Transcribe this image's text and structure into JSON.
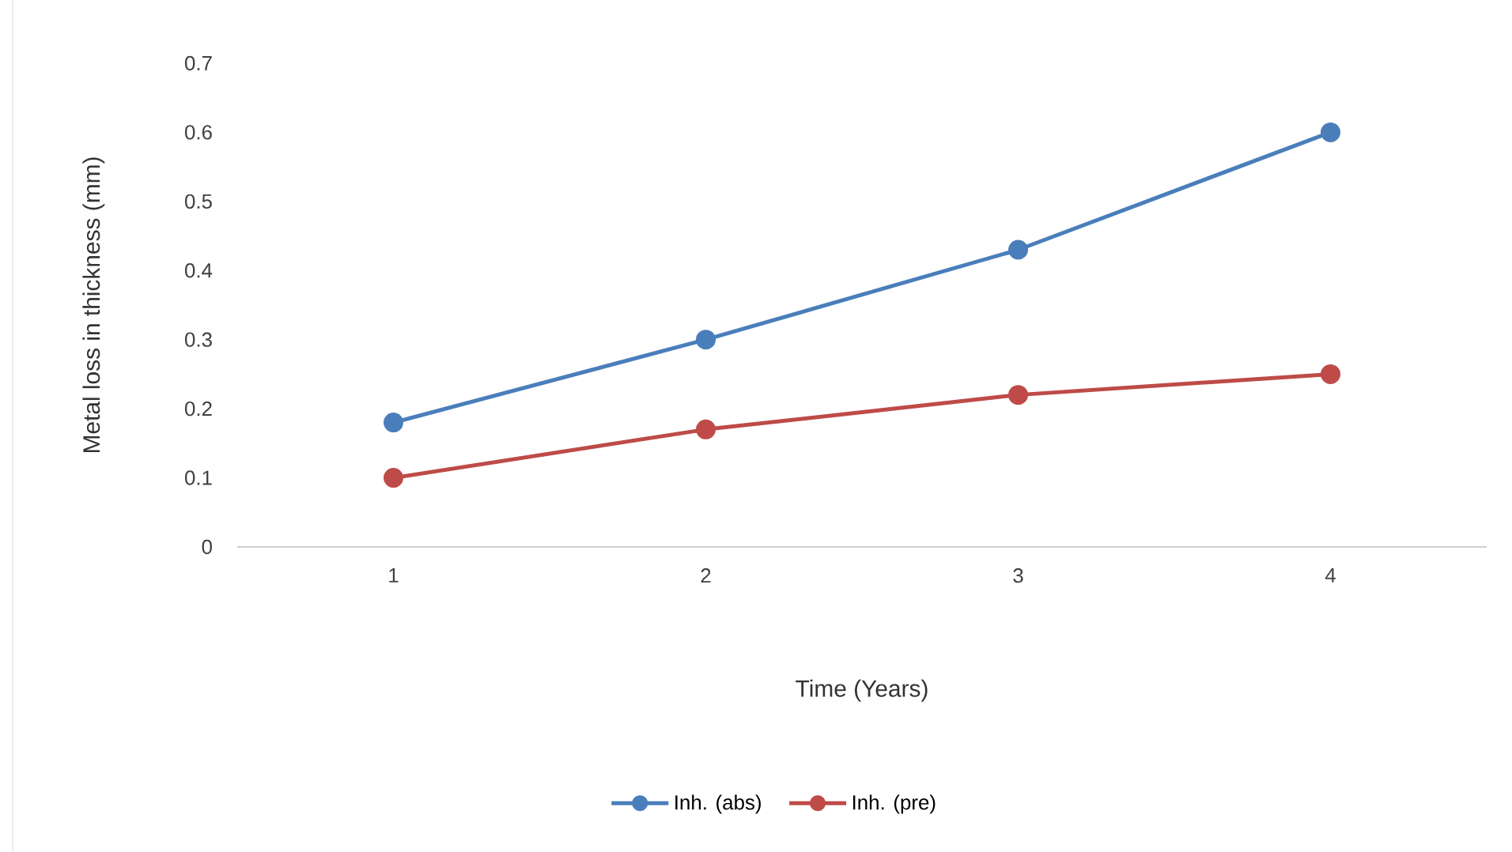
{
  "chart_data": {
    "type": "line",
    "xlabel": "Time (Years)",
    "ylabel": "Metal loss in thickness (mm)",
    "categories": [
      "1",
      "2",
      "3",
      "4"
    ],
    "series": [
      {
        "name": "Inh. (abs)",
        "color": "#4a7ebb",
        "values": [
          0.18,
          0.3,
          0.43,
          0.6
        ]
      },
      {
        "name": "Inh. (pre)",
        "color": "#be4b48",
        "values": [
          0.1,
          0.17,
          0.22,
          0.25
        ]
      }
    ],
    "ylim": [
      0,
      0.7
    ],
    "yticks": [
      0,
      0.1,
      0.2,
      0.3,
      0.4,
      0.5,
      0.6,
      0.7
    ],
    "legend": "bottom",
    "marker": "circle"
  }
}
